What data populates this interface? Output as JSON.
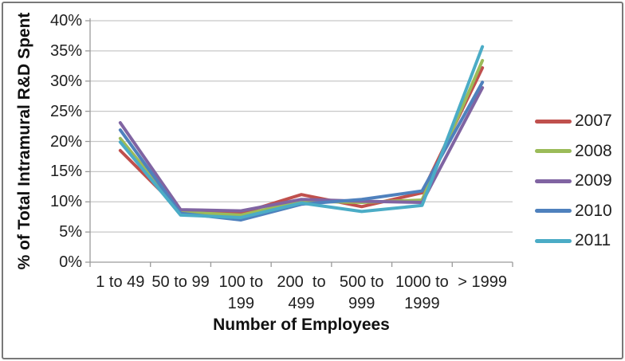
{
  "chart_data": {
    "type": "line",
    "xlabel": "Number of Employees",
    "ylabel": "% of Total Intramural R&D Spent",
    "categories": [
      "1 to 49",
      "50 to 99",
      "100 to 199",
      "200  to 499",
      "500 to 999",
      "1000 to 1999",
      "> 1999"
    ],
    "category_label_lines": [
      [
        "1 to 49"
      ],
      [
        "50 to 99"
      ],
      [
        "100 to",
        "199"
      ],
      [
        "200  to",
        "499"
      ],
      [
        "500 to",
        "999"
      ],
      [
        "1000 to",
        "1999"
      ],
      [
        "> 1999"
      ]
    ],
    "series": [
      {
        "name": "2007",
        "color": "#C0504D",
        "values": [
          18.5,
          8.5,
          8.1,
          11.2,
          9.2,
          11.5,
          32.2
        ]
      },
      {
        "name": "2008",
        "color": "#9BBB59",
        "values": [
          20.5,
          8.3,
          7.8,
          10.1,
          9.9,
          10.3,
          33.4
        ]
      },
      {
        "name": "2009",
        "color": "#8064A2",
        "values": [
          23.1,
          8.7,
          8.5,
          10.4,
          10.1,
          9.9,
          28.9
        ]
      },
      {
        "name": "2010",
        "color": "#4F81BD",
        "values": [
          21.9,
          8.1,
          7.0,
          9.6,
          10.4,
          11.8,
          29.8
        ]
      },
      {
        "name": "2011",
        "color": "#4BACC6",
        "values": [
          19.9,
          7.8,
          7.4,
          9.8,
          8.4,
          9.4,
          35.7
        ]
      }
    ],
    "y_axis": {
      "min": 0,
      "max": 40,
      "step": 5,
      "tick_labels": [
        "0%",
        "5%",
        "10%",
        "15%",
        "20%",
        "25%",
        "30%",
        "35%",
        "40%"
      ]
    },
    "ylim": [
      0,
      40
    ],
    "grid": true,
    "legend_position": "right"
  },
  "colors": {
    "gridline": "#C7C7C7",
    "axis": "#9A9A9A",
    "text": "#1F1F1F",
    "border": "#787878",
    "background": "#FFFFFF"
  }
}
